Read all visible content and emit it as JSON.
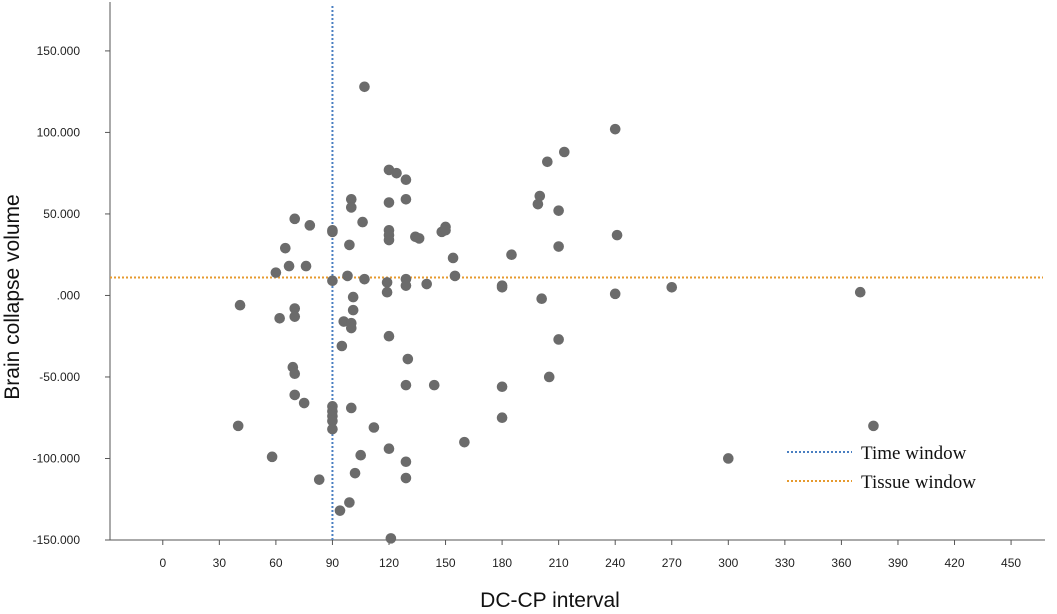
{
  "chart_data": {
    "type": "scatter",
    "xlabel": "DC-CP interval",
    "ylabel": "Brain collapse volume",
    "xlim": [
      -28,
      468
    ],
    "ylim": [
      -150000,
      180000
    ],
    "x_ticks": [
      0,
      30,
      60,
      90,
      120,
      150,
      180,
      210,
      240,
      270,
      300,
      330,
      360,
      390,
      420,
      450
    ],
    "x_tick_labels": [
      "0",
      "30",
      "60",
      "90",
      "120",
      "150",
      "180",
      "210",
      "240",
      "270",
      "300",
      "330",
      "360",
      "390",
      "420",
      "450"
    ],
    "y_ticks": [
      -150000,
      -100000,
      -50000,
      0,
      50000,
      100000,
      150000
    ],
    "y_tick_labels": [
      "-150.000",
      "-100.000",
      "-50.000",
      ".000",
      "50.000",
      "100.000",
      "150.000"
    ],
    "grid": false,
    "legend_position": "bottom-right",
    "reference_lines": [
      {
        "name": "Time window",
        "orientation": "vertical",
        "value": 90,
        "color": "#4a7fc1"
      },
      {
        "name": "Tissue window",
        "orientation": "horizontal",
        "value": 11000,
        "color": "#e69a2e"
      }
    ],
    "marker_color": "#6b6b6b",
    "points": [
      [
        40,
        -80000
      ],
      [
        41,
        -6000
      ],
      [
        58,
        -99000
      ],
      [
        60,
        14000
      ],
      [
        62,
        -14000
      ],
      [
        65,
        29000
      ],
      [
        67,
        18000
      ],
      [
        69,
        -44000
      ],
      [
        70,
        47000
      ],
      [
        70,
        -48000
      ],
      [
        70,
        -8000
      ],
      [
        70,
        -13000
      ],
      [
        70,
        -61000
      ],
      [
        75,
        -66000
      ],
      [
        76,
        18000
      ],
      [
        78,
        43000
      ],
      [
        83,
        -113000
      ],
      [
        90,
        40000
      ],
      [
        90,
        39000
      ],
      [
        90,
        9000
      ],
      [
        90,
        -68000
      ],
      [
        90,
        -71000
      ],
      [
        90,
        -74000
      ],
      [
        90,
        -77000
      ],
      [
        90,
        -82000
      ],
      [
        94,
        -132000
      ],
      [
        95,
        -31000
      ],
      [
        96,
        -16000
      ],
      [
        98,
        12000
      ],
      [
        99,
        31000
      ],
      [
        99,
        -127000
      ],
      [
        100,
        59000
      ],
      [
        100,
        54000
      ],
      [
        100,
        -17000
      ],
      [
        100,
        -20000
      ],
      [
        100,
        -69000
      ],
      [
        101,
        -1000
      ],
      [
        101,
        -9000
      ],
      [
        102,
        -109000
      ],
      [
        105,
        -98000
      ],
      [
        106,
        45000
      ],
      [
        107,
        128000
      ],
      [
        107,
        10000
      ],
      [
        112,
        -81000
      ],
      [
        119,
        8000
      ],
      [
        119,
        2000
      ],
      [
        120,
        77000
      ],
      [
        120,
        57000
      ],
      [
        120,
        40000
      ],
      [
        120,
        37000
      ],
      [
        120,
        34000
      ],
      [
        120,
        -25000
      ],
      [
        120,
        -94000
      ],
      [
        121,
        -149000
      ],
      [
        124,
        75000
      ],
      [
        129,
        71000
      ],
      [
        129,
        59000
      ],
      [
        129,
        10000
      ],
      [
        129,
        6000
      ],
      [
        129,
        -55000
      ],
      [
        129,
        -102000
      ],
      [
        129,
        -112000
      ],
      [
        130,
        -39000
      ],
      [
        134,
        36000
      ],
      [
        136,
        35000
      ],
      [
        140,
        7000
      ],
      [
        144,
        -55000
      ],
      [
        148,
        39000
      ],
      [
        150,
        42000
      ],
      [
        150,
        40000
      ],
      [
        154,
        23000
      ],
      [
        155,
        12000
      ],
      [
        160,
        -90000
      ],
      [
        180,
        6000
      ],
      [
        180,
        5000
      ],
      [
        180,
        -56000
      ],
      [
        180,
        -75000
      ],
      [
        185,
        25000
      ],
      [
        199,
        56000
      ],
      [
        200,
        61000
      ],
      [
        201,
        -2000
      ],
      [
        204,
        82000
      ],
      [
        205,
        -50000
      ],
      [
        210,
        52000
      ],
      [
        210,
        30000
      ],
      [
        210,
        -27000
      ],
      [
        213,
        88000
      ],
      [
        240,
        102000
      ],
      [
        241,
        37000
      ],
      [
        240,
        1000
      ],
      [
        270,
        5000
      ],
      [
        300,
        -100000
      ],
      [
        370,
        2000
      ],
      [
        377,
        -80000
      ]
    ]
  }
}
